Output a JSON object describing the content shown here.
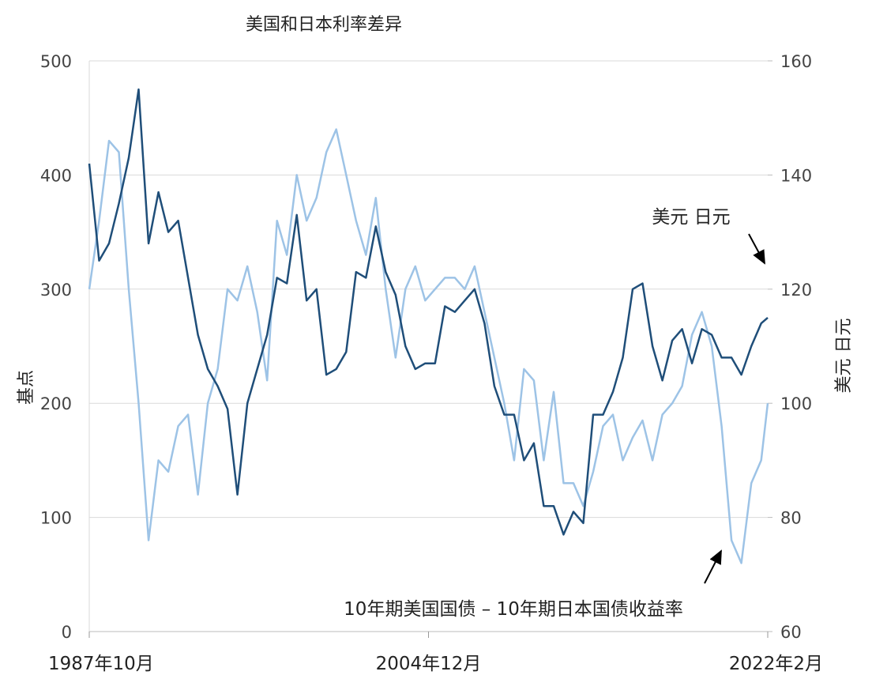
{
  "chart_data": {
    "type": "line",
    "title": "美国和日本利率差异",
    "ylabel": "基点",
    "y2label": "美元 日元",
    "x": [
      "1987-10",
      "1988-04",
      "1988-10",
      "1989-04",
      "1989-10",
      "1990-04",
      "1990-10",
      "1991-04",
      "1991-10",
      "1992-04",
      "1992-10",
      "1993-04",
      "1993-10",
      "1994-04",
      "1994-10",
      "1995-04",
      "1995-10",
      "1996-04",
      "1996-10",
      "1997-04",
      "1997-10",
      "1998-04",
      "1998-10",
      "1999-04",
      "1999-10",
      "2000-04",
      "2000-10",
      "2001-04",
      "2001-10",
      "2002-04",
      "2002-10",
      "2003-04",
      "2003-10",
      "2004-04",
      "2004-10",
      "2005-04",
      "2005-10",
      "2006-04",
      "2006-10",
      "2007-04",
      "2007-10",
      "2008-04",
      "2008-10",
      "2009-04",
      "2009-10",
      "2010-04",
      "2010-10",
      "2011-04",
      "2011-10",
      "2012-04",
      "2012-10",
      "2013-04",
      "2013-10",
      "2014-04",
      "2014-10",
      "2015-04",
      "2015-10",
      "2016-04",
      "2016-10",
      "2017-04",
      "2017-10",
      "2018-04",
      "2018-10",
      "2019-04",
      "2019-10",
      "2020-04",
      "2020-10",
      "2021-04",
      "2021-10",
      "2022-02"
    ],
    "xlim": [
      "1987-10",
      "2022-02"
    ],
    "xticks": [
      {
        "value": "1987-10",
        "label": "1987年10月"
      },
      {
        "value": "2004-12",
        "label": "2004年12月"
      },
      {
        "value": "2022-02",
        "label": "2022年2月"
      }
    ],
    "ylim": [
      0,
      500
    ],
    "yticks": [
      0,
      100,
      200,
      300,
      400,
      500
    ],
    "y2lim": [
      60,
      160
    ],
    "y2ticks": [
      60,
      80,
      100,
      120,
      140,
      160
    ],
    "grid": true,
    "series": [
      {
        "name": "10年期美国国债 – 10年期日本国债收益率",
        "color": "#9dc3e6",
        "values": [
          300,
          360,
          430,
          420,
          300,
          200,
          80,
          150,
          140,
          180,
          190,
          120,
          200,
          230,
          300,
          290,
          320,
          280,
          220,
          360,
          330,
          400,
          360,
          380,
          420,
          440,
          400,
          360,
          330,
          380,
          300,
          240,
          300,
          320,
          290,
          300,
          310,
          310,
          300,
          320,
          280,
          240,
          200,
          150,
          230,
          220,
          150,
          210,
          130,
          130,
          110,
          140,
          180,
          190,
          150,
          170,
          185,
          150,
          190,
          200,
          215,
          260,
          280,
          250,
          180,
          80,
          60,
          130,
          150,
          200
        ]
      },
      {
        "name": "美元 日元",
        "color": "#1f4e79",
        "axis": "y2",
        "values": [
          142,
          125,
          128,
          135,
          143,
          155,
          128,
          137,
          130,
          132,
          122,
          112,
          106,
          103,
          99,
          84,
          100,
          106,
          112,
          122,
          121,
          133,
          118,
          120,
          105,
          106,
          109,
          123,
          122,
          131,
          123,
          119,
          110,
          106,
          107,
          107,
          117,
          116,
          118,
          120,
          114,
          103,
          98,
          98,
          90,
          93,
          82,
          82,
          77,
          81,
          79,
          98,
          98,
          102,
          108,
          120,
          121,
          110,
          104,
          111,
          113,
          107,
          113,
          112,
          108,
          108,
          105,
          110,
          114,
          115
        ]
      }
    ]
  }
}
